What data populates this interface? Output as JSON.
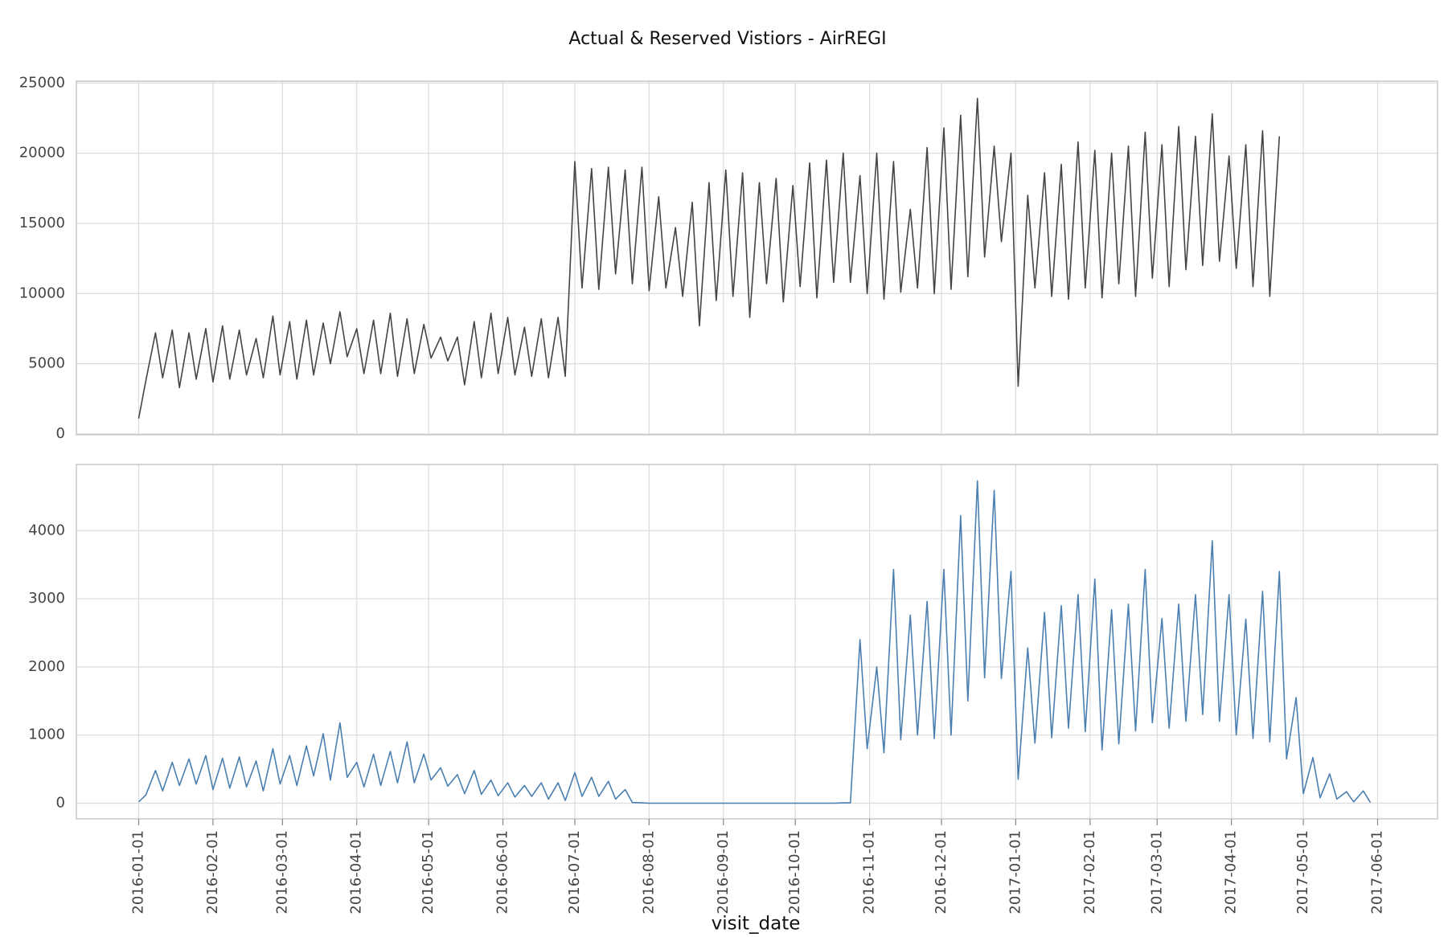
{
  "chart_data": {
    "type": "line",
    "title": "Actual & Reserved Vistiors - AirREGI",
    "xlabel": "visit_date",
    "grid": true,
    "xlim": [
      "2015-12-06",
      "2017-06-26"
    ],
    "xticks": [
      "2016-01-01",
      "2016-02-01",
      "2016-03-01",
      "2016-04-01",
      "2016-05-01",
      "2016-06-01",
      "2016-07-01",
      "2016-08-01",
      "2016-09-01",
      "2016-10-01",
      "2016-11-01",
      "2016-12-01",
      "2017-01-01",
      "2017-02-01",
      "2017-03-01",
      "2017-04-01",
      "2017-05-01",
      "2017-06-01"
    ],
    "x": [
      "2016-01-01",
      "2016-01-04",
      "2016-01-08",
      "2016-01-11",
      "2016-01-15",
      "2016-01-18",
      "2016-01-22",
      "2016-01-25",
      "2016-01-29",
      "2016-02-01",
      "2016-02-05",
      "2016-02-08",
      "2016-02-12",
      "2016-02-15",
      "2016-02-19",
      "2016-02-22",
      "2016-02-26",
      "2016-02-29",
      "2016-03-04",
      "2016-03-07",
      "2016-03-11",
      "2016-03-14",
      "2016-03-18",
      "2016-03-21",
      "2016-03-25",
      "2016-03-28",
      "2016-04-01",
      "2016-04-04",
      "2016-04-08",
      "2016-04-11",
      "2016-04-15",
      "2016-04-18",
      "2016-04-22",
      "2016-04-25",
      "2016-04-29",
      "2016-05-02",
      "2016-05-06",
      "2016-05-09",
      "2016-05-13",
      "2016-05-16",
      "2016-05-20",
      "2016-05-23",
      "2016-05-27",
      "2016-05-30",
      "2016-06-03",
      "2016-06-06",
      "2016-06-10",
      "2016-06-13",
      "2016-06-17",
      "2016-06-20",
      "2016-06-24",
      "2016-06-27",
      "2016-07-01",
      "2016-07-04",
      "2016-07-08",
      "2016-07-11",
      "2016-07-15",
      "2016-07-18",
      "2016-07-22",
      "2016-07-25",
      "2016-07-29",
      "2016-08-01",
      "2016-08-05",
      "2016-08-08",
      "2016-08-12",
      "2016-08-15",
      "2016-08-19",
      "2016-08-22",
      "2016-08-26",
      "2016-08-29",
      "2016-09-02",
      "2016-09-05",
      "2016-09-09",
      "2016-09-12",
      "2016-09-16",
      "2016-09-19",
      "2016-09-23",
      "2016-09-26",
      "2016-09-30",
      "2016-10-03",
      "2016-10-07",
      "2016-10-10",
      "2016-10-14",
      "2016-10-17",
      "2016-10-21",
      "2016-10-24",
      "2016-10-28",
      "2016-10-31",
      "2016-11-04",
      "2016-11-07",
      "2016-11-11",
      "2016-11-14",
      "2016-11-18",
      "2016-11-21",
      "2016-11-25",
      "2016-11-28",
      "2016-12-02",
      "2016-12-05",
      "2016-12-09",
      "2016-12-12",
      "2016-12-16",
      "2016-12-19",
      "2016-12-23",
      "2016-12-26",
      "2016-12-30",
      "2017-01-02",
      "2017-01-06",
      "2017-01-09",
      "2017-01-13",
      "2017-01-16",
      "2017-01-20",
      "2017-01-23",
      "2017-01-27",
      "2017-01-30",
      "2017-02-03",
      "2017-02-06",
      "2017-02-10",
      "2017-02-13",
      "2017-02-17",
      "2017-02-20",
      "2017-02-24",
      "2017-02-27",
      "2017-03-03",
      "2017-03-06",
      "2017-03-10",
      "2017-03-13",
      "2017-03-17",
      "2017-03-20",
      "2017-03-24",
      "2017-03-27",
      "2017-03-31",
      "2017-04-03",
      "2017-04-07",
      "2017-04-10",
      "2017-04-14",
      "2017-04-17",
      "2017-04-21",
      "2017-04-24",
      "2017-04-28",
      "2017-05-01",
      "2017-05-05",
      "2017-05-08",
      "2017-05-12",
      "2017-05-15",
      "2017-05-19",
      "2017-05-22",
      "2017-05-26",
      "2017-05-29"
    ],
    "panels": [
      {
        "ylim": [
          -60,
          25130
        ],
        "yticks": [
          0,
          5000,
          10000,
          15000,
          20000,
          25000
        ],
        "series": [
          {
            "color": "#444444",
            "values": [
              1100,
              3800,
              7200,
              4000,
              7400,
              3300,
              7200,
              3900,
              7500,
              3700,
              7700,
              3900,
              7400,
              4200,
              6800,
              4000,
              8400,
              4200,
              8000,
              3900,
              8100,
              4200,
              7900,
              5000,
              8700,
              5500,
              7500,
              4300,
              8100,
              4300,
              8600,
              4100,
              8200,
              4300,
              7800,
              5400,
              6900,
              5200,
              6900,
              3500,
              8000,
              4000,
              8600,
              4300,
              8300,
              4200,
              7600,
              4100,
              8200,
              4000,
              8300,
              4100,
              19400,
              10400,
              18900,
              10300,
              19000,
              11400,
              18800,
              10700,
              19000,
              10200,
              16900,
              10400,
              14700,
              9800,
              16500,
              7700,
              17900,
              9500,
              18800,
              9800,
              18600,
              8300,
              17900,
              10700,
              18200,
              9400,
              17700,
              10500,
              19300,
              9700,
              19500,
              10800,
              20000,
              10800,
              18400,
              10000,
              20000,
              9600,
              19400,
              10100,
              16000,
              10400,
              20400,
              10000,
              21800,
              10300,
              22700,
              11200,
              23900,
              12600,
              20500,
              13700,
              20000,
              3400,
              17000,
              10400,
              18600,
              9800,
              19200,
              9600,
              20800,
              10400,
              20200,
              9700,
              20000,
              10700,
              20500,
              9800,
              21500,
              11100,
              20600,
              10500,
              21900,
              11700,
              21200,
              12000,
              22800,
              12300,
              19800,
              11800,
              20600,
              10500,
              21600,
              9800,
              21200,
              null,
              null,
              null,
              null,
              null,
              null,
              null,
              null,
              null,
              null,
              null
            ]
          }
        ]
      },
      {
        "ylim": [
          -230,
          4970
        ],
        "yticks": [
          0,
          1000,
          2000,
          3000,
          4000
        ],
        "series": [
          {
            "color": "#4a7fb0",
            "values": [
              20,
              120,
              480,
              180,
              600,
              260,
              650,
              280,
              700,
              200,
              660,
              220,
              680,
              240,
              620,
              180,
              800,
              280,
              700,
              260,
              840,
              400,
              1020,
              340,
              1180,
              380,
              600,
              240,
              720,
              260,
              760,
              300,
              900,
              300,
              720,
              340,
              520,
              250,
              420,
              140,
              480,
              130,
              340,
              110,
              300,
              90,
              260,
              100,
              300,
              60,
              300,
              40,
              450,
              100,
              380,
              100,
              320,
              60,
              200,
              10,
              5,
              0,
              0,
              0,
              0,
              0,
              0,
              0,
              0,
              0,
              0,
              0,
              0,
              0,
              0,
              0,
              0,
              0,
              0,
              0,
              0,
              0,
              0,
              0,
              5,
              5,
              2400,
              800,
              2000,
              740,
              3430,
              930,
              2760,
              1000,
              2960,
              950,
              3430,
              1000,
              4220,
              1500,
              4730,
              1840,
              4590,
              1830,
              3400,
              350,
              2280,
              880,
              2800,
              960,
              2900,
              1100,
              3060,
              1050,
              3290,
              780,
              2840,
              870,
              2920,
              1060,
              3430,
              1180,
              2710,
              1100,
              2920,
              1200,
              3060,
              1300,
              3850,
              1200,
              3060,
              1000,
              2700,
              950,
              3110,
              900,
              3400,
              650,
              1550,
              140,
              670,
              80,
              430,
              60,
              170,
              20,
              180,
              10
            ]
          }
        ]
      }
    ]
  }
}
